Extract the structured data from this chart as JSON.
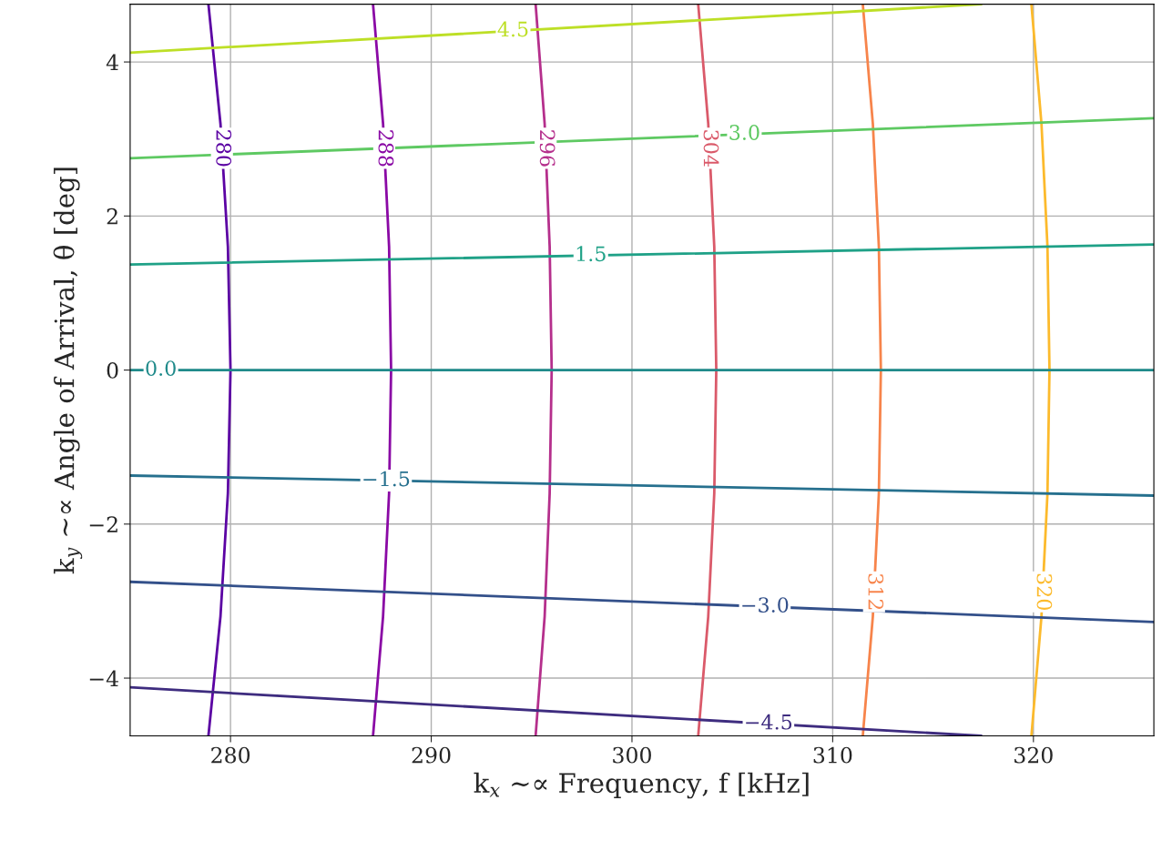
{
  "chart_data": {
    "type": "line",
    "xlabel": "k$_{x}$ ∼∝ Frequency, f [kHz]",
    "ylabel": "k$_{y}$ ∼∝ Angle of Arrival, θ [deg]",
    "xlim": [
      275,
      326
    ],
    "ylim": [
      -4.75,
      4.75
    ],
    "xticks": [
      280,
      290,
      300,
      310,
      320
    ],
    "yticks": [
      {
        "value": -4,
        "label": "−4"
      },
      {
        "value": -2,
        "label": "−2"
      },
      0,
      2,
      4
    ],
    "grid": true,
    "marker": "none",
    "line_style": "solid",
    "series": [
      {
        "name": "280",
        "color": "#5b02a3",
        "x": [
          278.9,
          279.5,
          279.87,
          280.0,
          279.87,
          279.5,
          278.9
        ],
        "values": [
          4.75,
          3.2,
          1.6,
          0,
          -1.6,
          -3.2,
          -4.75
        ]
      },
      {
        "name": "288",
        "color": "#8a09a5",
        "x": [
          287.1,
          287.6,
          287.9,
          288.0,
          287.9,
          287.6,
          287.1
        ],
        "values": [
          4.75,
          3.2,
          1.6,
          0,
          -1.6,
          -3.2,
          -4.75
        ]
      },
      {
        "name": "296",
        "color": "#b52f8c",
        "x": [
          295.2,
          295.65,
          295.9,
          296.0,
          295.9,
          295.65,
          295.2
        ],
        "values": [
          4.75,
          3.2,
          1.6,
          0,
          -1.6,
          -3.2,
          -4.75
        ]
      },
      {
        "name": "304",
        "color": "#da5a6a",
        "x": [
          303.3,
          303.8,
          304.1,
          304.2,
          304.1,
          303.8,
          303.3
        ],
        "values": [
          4.75,
          3.2,
          1.6,
          0,
          -1.6,
          -3.2,
          -4.75
        ]
      },
      {
        "name": "312",
        "color": "#f7844b",
        "x": [
          311.5,
          312.0,
          312.3,
          312.4,
          312.3,
          312.0,
          311.5
        ],
        "values": [
          4.75,
          3.2,
          1.6,
          0,
          -1.6,
          -3.2,
          -4.75
        ]
      },
      {
        "name": "320",
        "color": "#fcba2c",
        "x": [
          319.9,
          320.4,
          320.7,
          320.8,
          320.7,
          320.4,
          319.9
        ],
        "values": [
          4.75,
          3.2,
          1.6,
          0,
          -1.6,
          -3.2,
          -4.75
        ]
      },
      {
        "name": "−4.5",
        "color": "#3e2c7f",
        "x": [
          275,
          317.4
        ],
        "values": [
          -4.12,
          -4.75
        ]
      },
      {
        "name": "−3.0",
        "color": "#33508a",
        "x": [
          275,
          326
        ],
        "values": [
          -2.75,
          -3.27
        ]
      },
      {
        "name": "−1.5",
        "color": "#26708e",
        "x": [
          275,
          326
        ],
        "values": [
          -1.37,
          -1.63
        ]
      },
      {
        "name": "0.0",
        "color": "#1f8a8a",
        "x": [
          275,
          326
        ],
        "values": [
          0,
          0
        ]
      },
      {
        "name": "1.5",
        "color": "#1fa187",
        "x": [
          275,
          326
        ],
        "values": [
          1.37,
          1.63
        ]
      },
      {
        "name": "3.0",
        "color": "#5ec962",
        "x": [
          275,
          326
        ],
        "values": [
          2.75,
          3.27
        ]
      },
      {
        "name": "4.5",
        "color": "#bddf26",
        "x": [
          275,
          317.4
        ],
        "values": [
          4.12,
          4.75
        ]
      }
    ]
  }
}
